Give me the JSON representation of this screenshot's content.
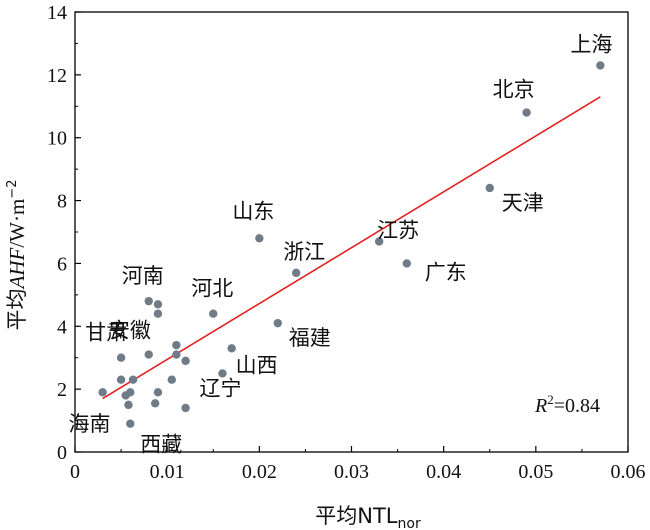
{
  "chart_data": {
    "type": "scatter",
    "title": "",
    "xlabel": {
      "main": "平均NTL",
      "sub": "nor"
    },
    "ylabel": {
      "prefix": "平均",
      "var": "AHF",
      "unit": "/W·m",
      "sup": "−2"
    },
    "xlim": [
      0,
      0.06
    ],
    "ylim": [
      0,
      14
    ],
    "xticks": [
      "0",
      "0.01",
      "0.02",
      "0.03",
      "0.04",
      "0.05",
      "0.06"
    ],
    "yticks": [
      "0",
      "2",
      "4",
      "6",
      "8",
      "10",
      "12",
      "14"
    ],
    "grid": false,
    "legend": "none",
    "point_color": "#6f7b86",
    "line_color": "#e32222",
    "points": [
      {
        "x": 0.057,
        "y": 12.3,
        "label": "上海"
      },
      {
        "x": 0.049,
        "y": 10.8,
        "label": "北京"
      },
      {
        "x": 0.045,
        "y": 8.4,
        "label": "天津"
      },
      {
        "x": 0.033,
        "y": 6.7,
        "label": "江苏"
      },
      {
        "x": 0.036,
        "y": 6.0,
        "label": "广东"
      },
      {
        "x": 0.02,
        "y": 6.8,
        "label": "山东"
      },
      {
        "x": 0.024,
        "y": 5.7,
        "label": "浙江"
      },
      {
        "x": 0.022,
        "y": 4.1,
        "label": "福建"
      },
      {
        "x": 0.015,
        "y": 4.4,
        "label": "河北"
      },
      {
        "x": 0.017,
        "y": 3.3,
        "label": "山西"
      },
      {
        "x": 0.016,
        "y": 2.5,
        "label": "辽宁"
      },
      {
        "x": 0.008,
        "y": 4.8,
        "label": "河南"
      },
      {
        "x": 0.009,
        "y": 4.7,
        "label": ""
      },
      {
        "x": 0.009,
        "y": 4.4,
        "label": "安徽"
      },
      {
        "x": 0.008,
        "y": 3.1,
        "label": ""
      },
      {
        "x": 0.011,
        "y": 3.4,
        "label": ""
      },
      {
        "x": 0.011,
        "y": 3.1,
        "label": ""
      },
      {
        "x": 0.012,
        "y": 2.9,
        "label": ""
      },
      {
        "x": 0.005,
        "y": 3.0,
        "label": "甘肃"
      },
      {
        "x": 0.005,
        "y": 2.3,
        "label": ""
      },
      {
        "x": 0.0063,
        "y": 2.3,
        "label": ""
      },
      {
        "x": 0.0105,
        "y": 2.3,
        "label": ""
      },
      {
        "x": 0.003,
        "y": 1.9,
        "label": ""
      },
      {
        "x": 0.0055,
        "y": 1.8,
        "label": ""
      },
      {
        "x": 0.006,
        "y": 1.9,
        "label": ""
      },
      {
        "x": 0.009,
        "y": 1.9,
        "label": ""
      },
      {
        "x": 0.0058,
        "y": 1.5,
        "label": "海南"
      },
      {
        "x": 0.0087,
        "y": 1.55,
        "label": ""
      },
      {
        "x": 0.012,
        "y": 1.4,
        "label": ""
      },
      {
        "x": 0.006,
        "y": 0.9,
        "label": "西藏"
      }
    ],
    "fit_line": {
      "x": [
        0.003,
        0.057
      ],
      "y": [
        1.7,
        11.3
      ]
    },
    "annotation": {
      "var": "R",
      "sup": "2",
      "text": "=0.84"
    }
  }
}
